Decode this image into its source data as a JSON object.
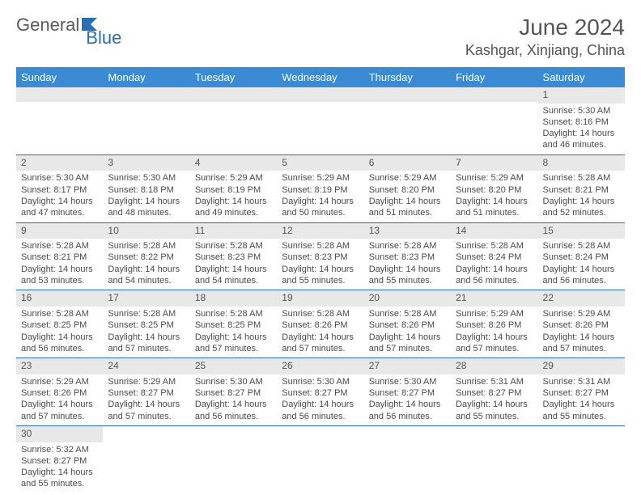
{
  "logo": {
    "part1": "General",
    "part2": "Blue",
    "part1_color": "#5a5a5a",
    "part2_color": "#2a6fb5"
  },
  "title": {
    "month": "June 2024",
    "location": "Kashgar, Xinjiang, China"
  },
  "colors": {
    "header_bg": "#3b8bd4",
    "header_text": "#ffffff",
    "daynum_bg": "#e8e8e8",
    "border": "#2a6fb5",
    "text": "#4a4a4a"
  },
  "day_headers": [
    "Sunday",
    "Monday",
    "Tuesday",
    "Wednesday",
    "Thursday",
    "Friday",
    "Saturday"
  ],
  "weeks": [
    [
      null,
      null,
      null,
      null,
      null,
      null,
      {
        "n": "1",
        "sunrise": "5:30 AM",
        "sunset": "8:16 PM",
        "daylight": "14 hours and 46 minutes."
      }
    ],
    [
      {
        "n": "2",
        "sunrise": "5:30 AM",
        "sunset": "8:17 PM",
        "daylight": "14 hours and 47 minutes."
      },
      {
        "n": "3",
        "sunrise": "5:30 AM",
        "sunset": "8:18 PM",
        "daylight": "14 hours and 48 minutes."
      },
      {
        "n": "4",
        "sunrise": "5:29 AM",
        "sunset": "8:19 PM",
        "daylight": "14 hours and 49 minutes."
      },
      {
        "n": "5",
        "sunrise": "5:29 AM",
        "sunset": "8:19 PM",
        "daylight": "14 hours and 50 minutes."
      },
      {
        "n": "6",
        "sunrise": "5:29 AM",
        "sunset": "8:20 PM",
        "daylight": "14 hours and 51 minutes."
      },
      {
        "n": "7",
        "sunrise": "5:29 AM",
        "sunset": "8:20 PM",
        "daylight": "14 hours and 51 minutes."
      },
      {
        "n": "8",
        "sunrise": "5:28 AM",
        "sunset": "8:21 PM",
        "daylight": "14 hours and 52 minutes."
      }
    ],
    [
      {
        "n": "9",
        "sunrise": "5:28 AM",
        "sunset": "8:21 PM",
        "daylight": "14 hours and 53 minutes."
      },
      {
        "n": "10",
        "sunrise": "5:28 AM",
        "sunset": "8:22 PM",
        "daylight": "14 hours and 54 minutes."
      },
      {
        "n": "11",
        "sunrise": "5:28 AM",
        "sunset": "8:23 PM",
        "daylight": "14 hours and 54 minutes."
      },
      {
        "n": "12",
        "sunrise": "5:28 AM",
        "sunset": "8:23 PM",
        "daylight": "14 hours and 55 minutes."
      },
      {
        "n": "13",
        "sunrise": "5:28 AM",
        "sunset": "8:23 PM",
        "daylight": "14 hours and 55 minutes."
      },
      {
        "n": "14",
        "sunrise": "5:28 AM",
        "sunset": "8:24 PM",
        "daylight": "14 hours and 56 minutes."
      },
      {
        "n": "15",
        "sunrise": "5:28 AM",
        "sunset": "8:24 PM",
        "daylight": "14 hours and 56 minutes."
      }
    ],
    [
      {
        "n": "16",
        "sunrise": "5:28 AM",
        "sunset": "8:25 PM",
        "daylight": "14 hours and 56 minutes."
      },
      {
        "n": "17",
        "sunrise": "5:28 AM",
        "sunset": "8:25 PM",
        "daylight": "14 hours and 57 minutes."
      },
      {
        "n": "18",
        "sunrise": "5:28 AM",
        "sunset": "8:25 PM",
        "daylight": "14 hours and 57 minutes."
      },
      {
        "n": "19",
        "sunrise": "5:28 AM",
        "sunset": "8:26 PM",
        "daylight": "14 hours and 57 minutes."
      },
      {
        "n": "20",
        "sunrise": "5:28 AM",
        "sunset": "8:26 PM",
        "daylight": "14 hours and 57 minutes."
      },
      {
        "n": "21",
        "sunrise": "5:29 AM",
        "sunset": "8:26 PM",
        "daylight": "14 hours and 57 minutes."
      },
      {
        "n": "22",
        "sunrise": "5:29 AM",
        "sunset": "8:26 PM",
        "daylight": "14 hours and 57 minutes."
      }
    ],
    [
      {
        "n": "23",
        "sunrise": "5:29 AM",
        "sunset": "8:26 PM",
        "daylight": "14 hours and 57 minutes."
      },
      {
        "n": "24",
        "sunrise": "5:29 AM",
        "sunset": "8:27 PM",
        "daylight": "14 hours and 57 minutes."
      },
      {
        "n": "25",
        "sunrise": "5:30 AM",
        "sunset": "8:27 PM",
        "daylight": "14 hours and 56 minutes."
      },
      {
        "n": "26",
        "sunrise": "5:30 AM",
        "sunset": "8:27 PM",
        "daylight": "14 hours and 56 minutes."
      },
      {
        "n": "27",
        "sunrise": "5:30 AM",
        "sunset": "8:27 PM",
        "daylight": "14 hours and 56 minutes."
      },
      {
        "n": "28",
        "sunrise": "5:31 AM",
        "sunset": "8:27 PM",
        "daylight": "14 hours and 55 minutes."
      },
      {
        "n": "29",
        "sunrise": "5:31 AM",
        "sunset": "8:27 PM",
        "daylight": "14 hours and 55 minutes."
      }
    ],
    [
      {
        "n": "30",
        "sunrise": "5:32 AM",
        "sunset": "8:27 PM",
        "daylight": "14 hours and 55 minutes."
      },
      null,
      null,
      null,
      null,
      null,
      null
    ]
  ],
  "labels": {
    "sunrise": "Sunrise:",
    "sunset": "Sunset:",
    "daylight": "Daylight:"
  }
}
